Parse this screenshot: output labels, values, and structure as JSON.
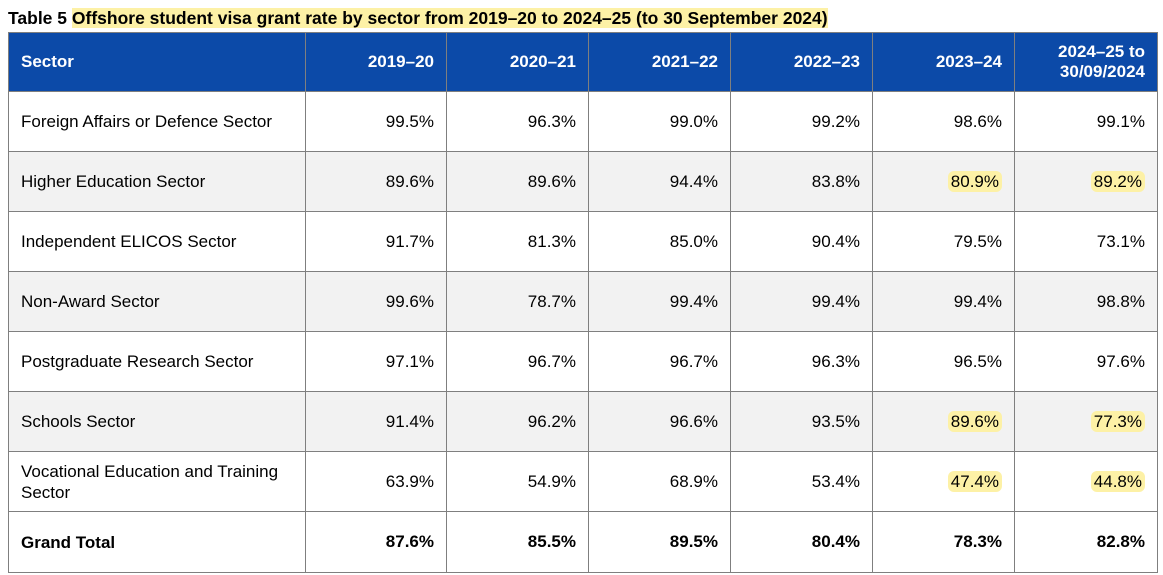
{
  "caption": {
    "label": "Table 5 ",
    "title": "Offshore student visa grant rate by sector from 2019–20 to 2024–25 (to 30 September 2024)"
  },
  "table": {
    "headers": [
      "Sector",
      "2019–20",
      "2020–21",
      "2021–22",
      "2022–23",
      "2023–24",
      "2024–25 to 30/09/2024"
    ],
    "rows": [
      {
        "sector": "Foreign Affairs or Defence Sector",
        "values": [
          "99.5%",
          "96.3%",
          "99.0%",
          "99.2%",
          "98.6%",
          "99.1%"
        ]
      },
      {
        "sector": "Higher Education Sector",
        "values": [
          "89.6%",
          "89.6%",
          "94.4%",
          "83.8%",
          "80.9%",
          "89.2%"
        ]
      },
      {
        "sector": "Independent ELICOS Sector",
        "values": [
          "91.7%",
          "81.3%",
          "85.0%",
          "90.4%",
          "79.5%",
          "73.1%"
        ]
      },
      {
        "sector": "Non-Award Sector",
        "values": [
          "99.6%",
          "78.7%",
          "99.4%",
          "99.4%",
          "99.4%",
          "98.8%"
        ]
      },
      {
        "sector": "Postgraduate Research Sector",
        "values": [
          "97.1%",
          "96.7%",
          "96.7%",
          "96.3%",
          "96.5%",
          "97.6%"
        ]
      },
      {
        "sector": "Schools Sector",
        "values": [
          "91.4%",
          "96.2%",
          "96.6%",
          "93.5%",
          "89.6%",
          "77.3%"
        ]
      },
      {
        "sector": "Vocational Education and Training Sector",
        "values": [
          "63.9%",
          "54.9%",
          "68.9%",
          "53.4%",
          "47.4%",
          "44.8%"
        ]
      }
    ],
    "total": {
      "sector": "Grand Total",
      "values": [
        "87.6%",
        "85.5%",
        "89.5%",
        "80.4%",
        "78.3%",
        "82.8%"
      ]
    }
  },
  "colors": {
    "header_bg": "#0c4aa8",
    "highlight": "#fdf1a6",
    "alt_row": "#f2f2f2"
  }
}
